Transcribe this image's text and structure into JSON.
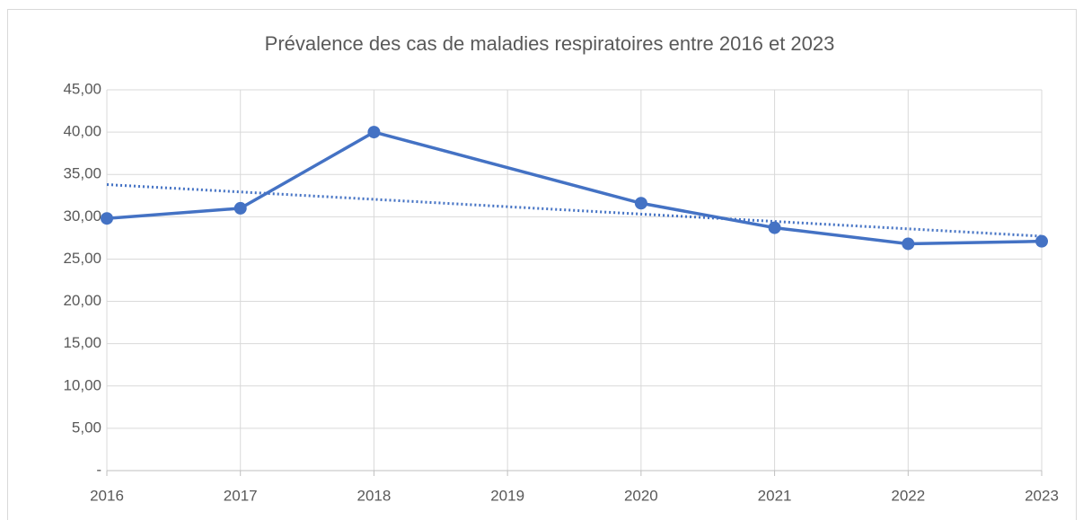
{
  "chart_data": {
    "type": "line",
    "title": "Prévalence des cas de maladies respiratoires entre 2016 et 2023",
    "x": [
      2016,
      2017,
      2018,
      2020,
      2021,
      2022,
      2023
    ],
    "series": [
      {
        "color": "#4472c4",
        "values": [
          29.8,
          31.0,
          40.0,
          31.6,
          28.7,
          26.8,
          27.1
        ]
      }
    ],
    "trendline": {
      "x": [
        2016,
        2023
      ],
      "values": [
        33.8,
        27.7
      ],
      "style": "dotted",
      "color": "#4472c4"
    },
    "xlim": [
      2016,
      2023
    ],
    "xticks": [
      2016,
      2017,
      2018,
      2019,
      2020,
      2021,
      2022,
      2023
    ],
    "ylim": [
      0,
      45
    ],
    "yticks": [
      {
        "value": 0,
        "label": "-"
      },
      {
        "value": 5,
        "label": "5,00"
      },
      {
        "value": 10,
        "label": "10,00"
      },
      {
        "value": 15,
        "label": "15,00"
      },
      {
        "value": 20,
        "label": "20,00"
      },
      {
        "value": 25,
        "label": "25,00"
      },
      {
        "value": 30,
        "label": "30,00"
      },
      {
        "value": 35,
        "label": "35,00"
      },
      {
        "value": 40,
        "label": "40,00"
      },
      {
        "value": 45,
        "label": "45,00"
      }
    ],
    "grid": true
  }
}
